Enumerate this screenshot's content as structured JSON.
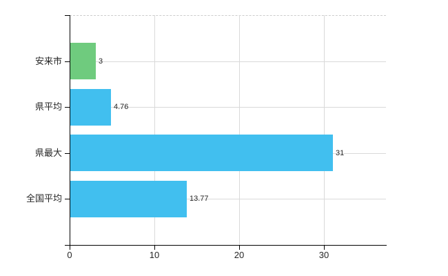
{
  "chart_data": {
    "type": "bar",
    "orientation": "horizontal",
    "title": "",
    "categories": [
      "安来市",
      "県平均",
      "県最大",
      "全国平均"
    ],
    "values": [
      3,
      4.76,
      31,
      13.77
    ],
    "value_labels": [
      "3",
      "4.76",
      "31",
      "13.77"
    ],
    "bar_colors": [
      "#6fcb7e",
      "#41bfef",
      "#41bfef",
      "#41bfef"
    ],
    "x_tick_labels": [
      "0",
      "10",
      "20",
      "30"
    ],
    "x_tick_values": [
      0,
      10,
      20,
      30
    ],
    "xlim": [
      0,
      37.3
    ],
    "xlabel": "",
    "ylabel": "",
    "grid": true,
    "legend_position": "none"
  },
  "style": {
    "background_color": "#ffffff",
    "axis_color": "#000000",
    "grid_color": "#d9d9d9",
    "top_boundary_color": "#cccccc",
    "highlight_bar_color": "#6fcb7e",
    "default_bar_color": "#41bfef",
    "text_color": "#262626"
  }
}
